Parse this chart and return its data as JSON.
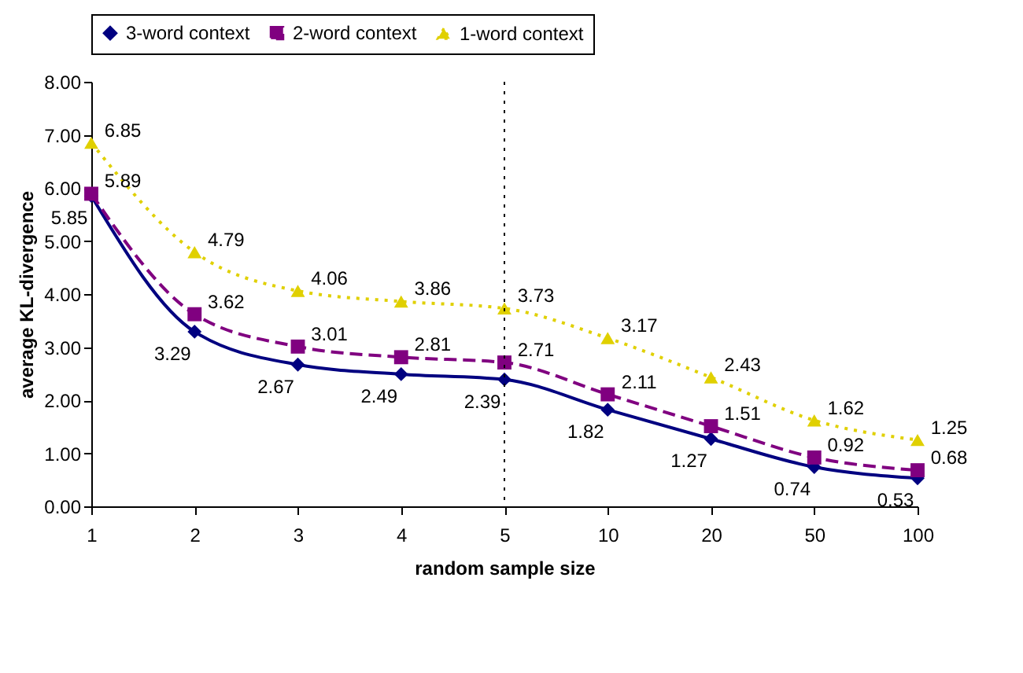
{
  "chart_data": {
    "type": "line",
    "xlabel": "random sample size",
    "ylabel": "average KL-divergence",
    "categories": [
      "1",
      "2",
      "3",
      "4",
      "5",
      "10",
      "20",
      "50",
      "100"
    ],
    "series": [
      {
        "name": "3-word context",
        "color": "#000080",
        "marker": "diamond",
        "line_style": "solid",
        "values": [
          5.85,
          3.29,
          2.67,
          2.49,
          2.39,
          1.82,
          1.27,
          0.74,
          0.53
        ]
      },
      {
        "name": "2-word context",
        "color": "#800080",
        "marker": "square",
        "line_style": "dashed",
        "values": [
          5.89,
          3.62,
          3.01,
          2.81,
          2.71,
          2.11,
          1.51,
          0.92,
          0.68
        ]
      },
      {
        "name": "1-word context",
        "color": "#e0d000",
        "marker": "triangle",
        "line_style": "dotted",
        "values": [
          6.85,
          4.79,
          4.06,
          3.86,
          3.73,
          3.17,
          2.43,
          1.62,
          1.25
        ]
      }
    ],
    "ylim": [
      0,
      8
    ],
    "yticks": [
      {
        "value": 0,
        "label": "0.00"
      },
      {
        "value": 1,
        "label": "1.00"
      },
      {
        "value": 2,
        "label": "2.00"
      },
      {
        "value": 3,
        "label": "3.00"
      },
      {
        "value": 4,
        "label": "4.00"
      },
      {
        "value": 5,
        "label": "5.00"
      },
      {
        "value": 6,
        "label": "6.00"
      },
      {
        "value": 7,
        "label": "7.00"
      },
      {
        "value": 8,
        "label": "8.00"
      }
    ],
    "ref_lines": [
      {
        "axis": "x",
        "value": "5",
        "line_style": "dotted",
        "color": "#000000"
      }
    ],
    "data_labels": true,
    "legend": "top",
    "grid": false
  }
}
